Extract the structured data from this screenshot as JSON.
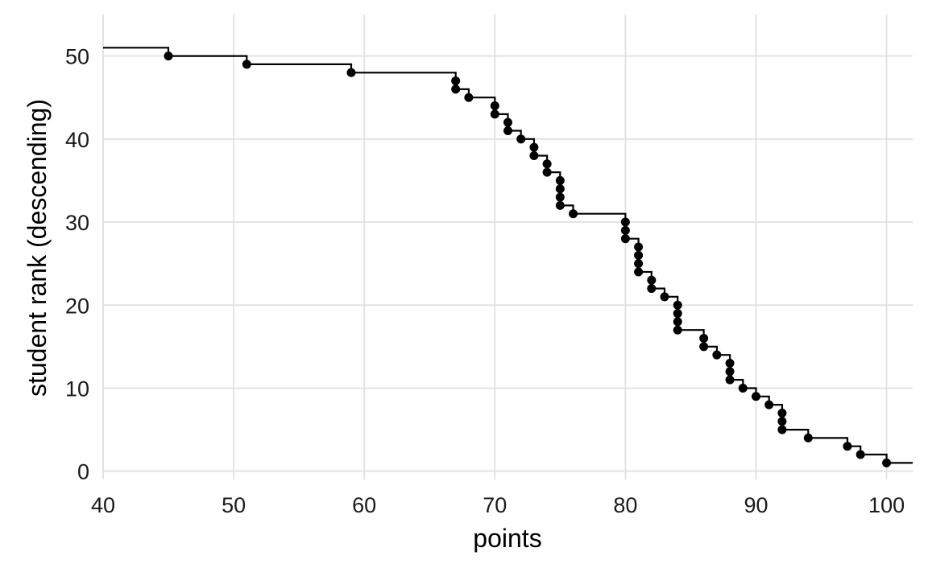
{
  "chart_data": {
    "type": "step-scatter",
    "title": "",
    "xlabel": "points",
    "ylabel": "student rank (descending)",
    "xlim": [
      40,
      102
    ],
    "ylim": [
      -1,
      55
    ],
    "grid": true,
    "legend": "none",
    "x_ticks": [
      {
        "value": 40,
        "label": "40"
      },
      {
        "value": 50,
        "label": "50"
      },
      {
        "value": 60,
        "label": "60"
      },
      {
        "value": 70,
        "label": "70"
      },
      {
        "value": 80,
        "label": "80"
      },
      {
        "value": 90,
        "label": "90"
      },
      {
        "value": 100,
        "label": "100"
      }
    ],
    "y_ticks": [
      {
        "value": 0,
        "label": "0"
      },
      {
        "value": 10,
        "label": "10"
      },
      {
        "value": 20,
        "label": "20"
      },
      {
        "value": 30,
        "label": "30"
      },
      {
        "value": 40,
        "label": "40"
      },
      {
        "value": 50,
        "label": "50"
      }
    ],
    "colors": {
      "line": "#000000",
      "point": "#000000",
      "grid": "#e3e3e3"
    },
    "step_line": {
      "x": [
        40,
        45,
        45,
        51,
        51,
        59,
        59,
        67,
        67,
        68,
        68,
        70,
        70,
        71,
        71,
        72,
        72,
        73,
        73,
        74,
        74,
        75,
        75,
        76,
        76,
        80,
        80,
        81,
        81,
        82,
        82,
        83,
        83,
        84,
        84,
        86,
        86,
        87,
        87,
        88,
        88,
        89,
        89,
        90,
        90,
        91,
        91,
        92,
        92,
        94,
        94,
        97,
        97,
        98,
        98,
        100,
        100,
        102
      ],
      "y": [
        51,
        51,
        50,
        50,
        49,
        49,
        48,
        48,
        46,
        46,
        45,
        45,
        43,
        43,
        41,
        41,
        40,
        40,
        38,
        38,
        36,
        36,
        32,
        32,
        31,
        31,
        28,
        28,
        24,
        24,
        22,
        22,
        21,
        21,
        17,
        17,
        15,
        15,
        14,
        14,
        11,
        11,
        10,
        10,
        9,
        9,
        8,
        8,
        5,
        5,
        4,
        4,
        3,
        3,
        2,
        2,
        1,
        1
      ]
    },
    "points": {
      "x": [
        45,
        51,
        59,
        67,
        67,
        68,
        70,
        70,
        71,
        71,
        72,
        73,
        73,
        74,
        74,
        75,
        75,
        75,
        75,
        76,
        80,
        80,
        80,
        81,
        81,
        81,
        81,
        82,
        82,
        83,
        84,
        84,
        84,
        84,
        86,
        86,
        87,
        88,
        88,
        88,
        89,
        90,
        91,
        92,
        92,
        92,
        94,
        97,
        98,
        100
      ],
      "y": [
        50,
        49,
        48,
        47,
        46,
        45,
        44,
        43,
        42,
        41,
        40,
        39,
        38,
        37,
        36,
        35,
        34,
        33,
        32,
        31,
        30,
        29,
        28,
        27,
        26,
        25,
        24,
        23,
        22,
        21,
        20,
        19,
        18,
        17,
        16,
        15,
        14,
        13,
        12,
        11,
        10,
        9,
        8,
        7,
        6,
        5,
        4,
        3,
        2,
        1
      ]
    }
  }
}
